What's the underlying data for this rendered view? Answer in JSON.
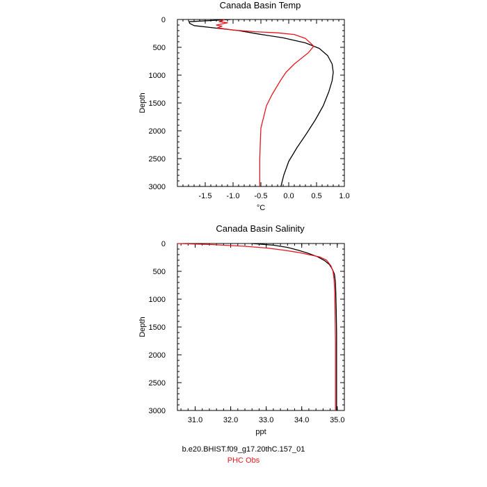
{
  "colors": {
    "model": "#000000",
    "obs": "#e8141c"
  },
  "footer": {
    "model_label": "b.e20.BHIST.f09_g17.20thC.157_01",
    "obs_label": "PHC Obs"
  },
  "chart_data": [
    {
      "type": "line",
      "title": "Canada Basin Temp",
      "xlabel": "°C",
      "ylabel": "Depth",
      "xlim": [
        -2.0,
        1.0
      ],
      "ylim": [
        3000,
        0
      ],
      "xticks": [
        -1.5,
        -1.0,
        -0.5,
        0.0,
        0.5,
        1.0
      ],
      "xtick_labels": [
        "-1.5",
        "-1.0",
        "-0.5",
        "0.0",
        "0.5",
        "1.0"
      ],
      "yticks": [
        0,
        500,
        1000,
        1500,
        2000,
        2500,
        3000
      ],
      "ytick_labels": [
        "0",
        "500",
        "1000",
        "1500",
        "2000",
        "2500",
        "3000"
      ],
      "series": [
        {
          "key": "model",
          "points": [
            [
              -1.05,
              0
            ],
            [
              -1.79,
              40
            ],
            [
              -1.78,
              70
            ],
            [
              -1.7,
              110
            ],
            [
              -1.35,
              150
            ],
            [
              -0.9,
              200
            ],
            [
              -0.55,
              260
            ],
            [
              -0.1,
              330
            ],
            [
              0.3,
              420
            ],
            [
              0.55,
              520
            ],
            [
              0.7,
              650
            ],
            [
              0.78,
              800
            ],
            [
              0.8,
              950
            ],
            [
              0.78,
              1100
            ],
            [
              0.72,
              1300
            ],
            [
              0.62,
              1550
            ],
            [
              0.48,
              1800
            ],
            [
              0.32,
              2050
            ],
            [
              0.15,
              2300
            ],
            [
              0.0,
              2550
            ],
            [
              -0.09,
              2800
            ],
            [
              -0.14,
              3000
            ]
          ]
        },
        {
          "key": "obs",
          "points": [
            [
              -1.15,
              0
            ],
            [
              -1.25,
              40
            ],
            [
              -1.1,
              60
            ],
            [
              -1.3,
              100
            ],
            [
              -1.2,
              120
            ],
            [
              -1.28,
              150
            ],
            [
              -1.0,
              190
            ],
            [
              -0.6,
              220
            ],
            [
              -0.2,
              240
            ],
            [
              0.1,
              270
            ],
            [
              0.3,
              340
            ],
            [
              0.45,
              480
            ],
            [
              0.35,
              600
            ],
            [
              0.1,
              800
            ],
            [
              -0.05,
              950
            ],
            [
              -0.15,
              1100
            ],
            [
              -0.3,
              1350
            ],
            [
              -0.4,
              1550
            ],
            [
              -0.45,
              1750
            ],
            [
              -0.5,
              1950
            ],
            [
              -0.51,
              2200
            ],
            [
              -0.52,
              2500
            ],
            [
              -0.52,
              2800
            ],
            [
              -0.52,
              3000
            ]
          ]
        }
      ]
    },
    {
      "type": "line",
      "title": "Canada Basin Salinity",
      "xlabel": "ppt",
      "ylabel": "Depth",
      "xlim": [
        30.5,
        35.2
      ],
      "ylim": [
        3000,
        0
      ],
      "xticks": [
        31.0,
        32.0,
        33.0,
        34.0,
        35.0
      ],
      "xtick_labels": [
        "31.0",
        "32.0",
        "33.0",
        "34.0",
        "35.0"
      ],
      "yticks": [
        0,
        500,
        1000,
        1500,
        2000,
        2500,
        3000
      ],
      "ytick_labels": [
        "0",
        "500",
        "1000",
        "1500",
        "2000",
        "2500",
        "3000"
      ],
      "series": [
        {
          "key": "model",
          "points": [
            [
              32.6,
              0
            ],
            [
              33.2,
              30
            ],
            [
              33.6,
              70
            ],
            [
              33.9,
              120
            ],
            [
              34.2,
              180
            ],
            [
              34.45,
              240
            ],
            [
              34.65,
              310
            ],
            [
              34.78,
              380
            ],
            [
              34.86,
              460
            ],
            [
              34.92,
              550
            ],
            [
              34.95,
              700
            ],
            [
              34.96,
              900
            ],
            [
              34.97,
              1200
            ],
            [
              34.98,
              1600
            ],
            [
              34.98,
              2000
            ],
            [
              34.98,
              2500
            ],
            [
              34.98,
              3000
            ]
          ]
        },
        {
          "key": "obs",
          "points": [
            [
              30.5,
              0
            ],
            [
              31.5,
              20
            ],
            [
              32.4,
              50
            ],
            [
              33.0,
              80
            ],
            [
              33.5,
              120
            ],
            [
              33.9,
              160
            ],
            [
              34.2,
              200
            ],
            [
              34.5,
              240
            ],
            [
              34.7,
              300
            ],
            [
              34.82,
              400
            ],
            [
              34.88,
              500
            ],
            [
              34.91,
              650
            ],
            [
              34.93,
              900
            ],
            [
              34.94,
              1300
            ],
            [
              34.95,
              1800
            ],
            [
              34.95,
              2400
            ],
            [
              34.95,
              3000
            ]
          ]
        }
      ]
    }
  ]
}
